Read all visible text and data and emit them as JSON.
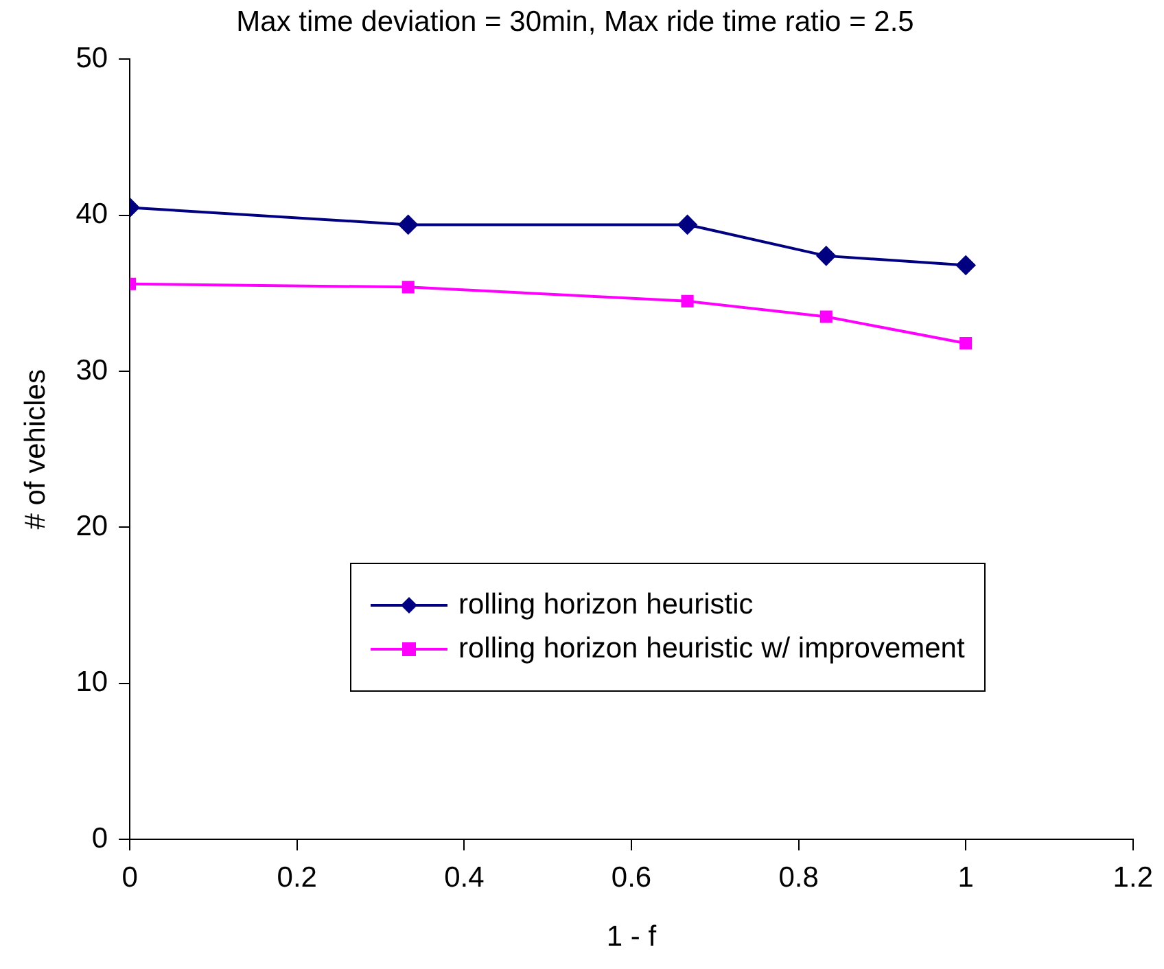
{
  "chart_data": {
    "type": "line",
    "title": "Max time deviation = 30min, Max ride time ratio = 2.5",
    "xlabel": "1 - f",
    "ylabel": "# of vehicles",
    "x": [
      0,
      0.333,
      0.667,
      0.833,
      1
    ],
    "series": [
      {
        "name": "rolling horizon heuristic",
        "color": "#000080",
        "marker": "diamond",
        "values": [
          40.5,
          39.4,
          39.4,
          37.4,
          36.8
        ]
      },
      {
        "name": "rolling horizon heuristic w/ improvement",
        "color": "#ff00ff",
        "marker": "square",
        "values": [
          35.6,
          35.4,
          34.5,
          33.5,
          31.8
        ]
      }
    ],
    "xlim": [
      0,
      1.2
    ],
    "xticks": [
      0,
      0.2,
      0.4,
      0.6,
      0.8,
      1,
      1.2
    ],
    "ylim": [
      0,
      50
    ],
    "yticks": [
      0,
      10,
      20,
      30,
      40,
      50
    ],
    "grid": false,
    "legend": "bottom right",
    "line_style": "solid"
  }
}
